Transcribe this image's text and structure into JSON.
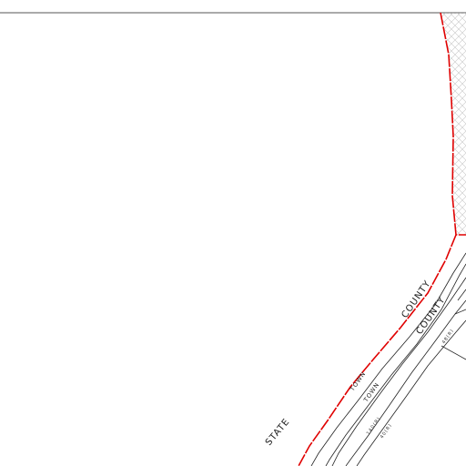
{
  "map": {
    "labels": {
      "county_outer": "COUNTY",
      "county_inner": "COUNTY",
      "town_outer": "TOWN",
      "town_inner": "TOWN",
      "state": "STATE",
      "tiny_a": "140(R)",
      "tiny_b": "40(R)",
      "tiny_c": "48(R)"
    },
    "colors": {
      "boundary": "#e00000",
      "linework": "#222222",
      "hatch": "#c8c8c8",
      "frame": "#555555",
      "background": "#ffffff"
    }
  }
}
